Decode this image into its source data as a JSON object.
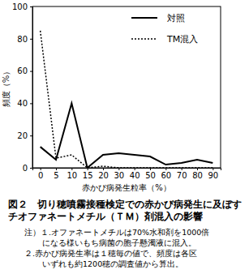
{
  "chart_data": {
    "type": "line",
    "title": [
      "図２　切り穂噴霧接種検定での赤かび病発生に及ぼす",
      "チオファネートメチル（ＴＭ）剤混入の影響"
    ],
    "notes": [
      "注）１.オファネートメチルは70%水和剤を1000倍",
      "になる様いもち病菌の胞子懸濁液に混入。",
      "２.赤かび病発生率は１穂毎の値で、頻度は各区",
      "いずれも約1200穂の調査値から算出。"
    ],
    "x_label": "赤かび病発生粒率（%）",
    "y_label": "頻度（%）",
    "categories": [
      "0",
      "5",
      "10",
      "15",
      "20",
      "30",
      "40",
      "50",
      "60",
      "70",
      "80",
      "90"
    ],
    "series": [
      {
        "name": "対照",
        "color": "#000000",
        "line_style": "solid",
        "values": [
          13,
          5,
          40,
          0,
          8,
          9,
          8,
          7,
          2,
          3,
          5,
          3
        ]
      },
      {
        "name": "TM混入",
        "color": "#000000",
        "line_style": "dotted",
        "values": [
          85,
          6,
          8,
          0,
          1,
          0,
          0,
          0,
          0,
          0,
          0,
          0
        ]
      }
    ],
    "ylim": [
      0,
      100
    ],
    "yticks": [
      0,
      20,
      40,
      60,
      80,
      100
    ],
    "grid": false,
    "legend": "upper right"
  }
}
